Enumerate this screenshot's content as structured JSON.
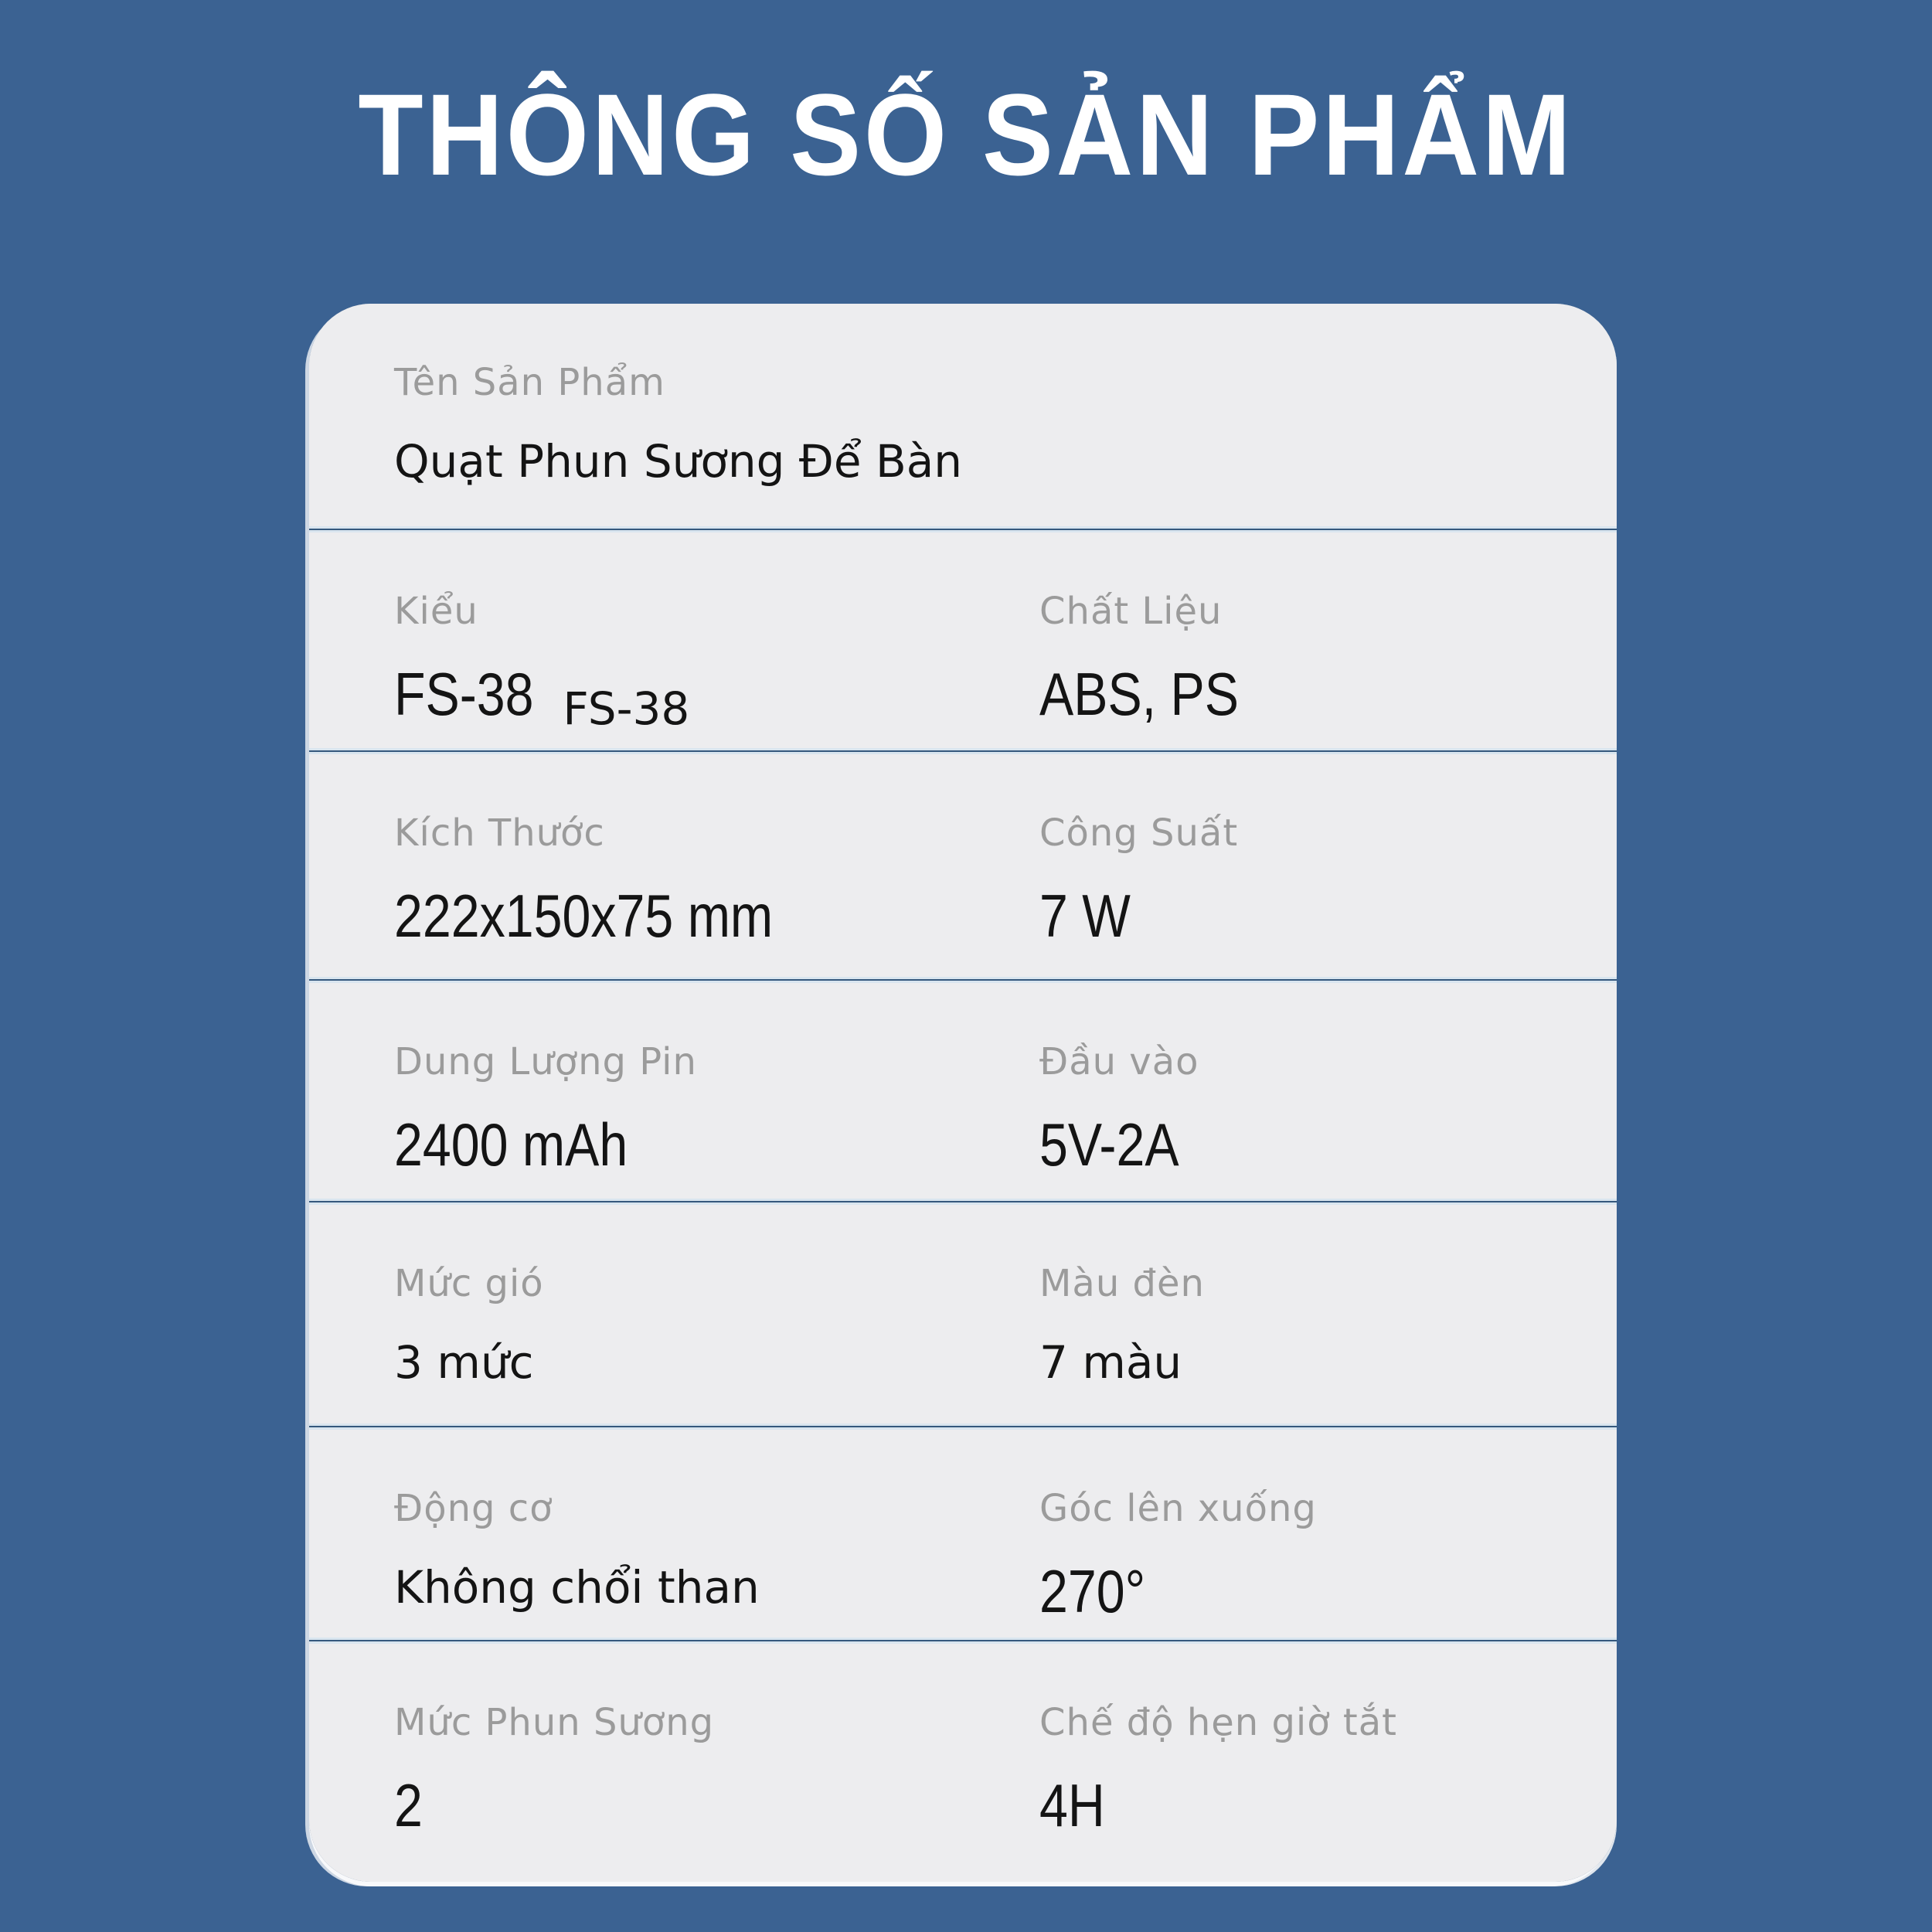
{
  "theme": {
    "background_color": "#3b6292",
    "card_color": "#ededef",
    "separator_color": "#35587d",
    "label_color": "#9b9b9b",
    "value_color": "#141414",
    "title_color": "#ffffff"
  },
  "header": {
    "title": "THÔNG SỐ SẢN PHẨM"
  },
  "spec": {
    "rows": [
      {
        "cells": [
          {
            "label": "Tên Sản Phẩm",
            "value": "Quạt Phun Sương Để Bàn"
          }
        ]
      },
      {
        "cells": [
          {
            "label": "Kiểu",
            "value": "FS-38",
            "value_alt": "FS-38"
          },
          {
            "label": "Chất Liệu",
            "value": "ABS, PS"
          }
        ]
      },
      {
        "cells": [
          {
            "label": "Kích Thước",
            "value": "222x150x75 mm"
          },
          {
            "label": "Công Suất",
            "value": "7 W"
          }
        ]
      },
      {
        "cells": [
          {
            "label": "Dung Lượng Pin",
            "value": "2400 mAh"
          },
          {
            "label": "Đầu vào",
            "value": "5V-2A"
          }
        ]
      },
      {
        "cells": [
          {
            "label": "Mức gió",
            "value": "3 mức"
          },
          {
            "label": "Màu đèn",
            "value": "7 màu"
          }
        ]
      },
      {
        "cells": [
          {
            "label": "Động cơ",
            "value": "Không chổi than"
          },
          {
            "label": "Góc lên xuống",
            "value": "270°"
          }
        ]
      },
      {
        "cells": [
          {
            "label": "Mức Phun Sương",
            "value": "2"
          },
          {
            "label": "Chế độ hẹn giờ tắt",
            "value": "4H"
          }
        ]
      }
    ]
  }
}
